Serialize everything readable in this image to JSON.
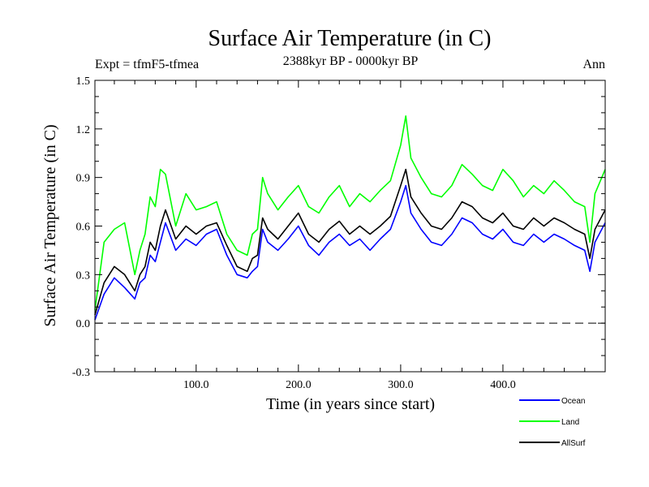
{
  "chart_data": {
    "type": "line",
    "title": "Surface Air Temperature (in C)",
    "subtitle": "2388kyr BP - 0000kyr BP",
    "left_label": "Expt = tfmF5-tfmea",
    "right_label": "Ann",
    "xlabel": "Time (in years since start)",
    "ylabel": "Surface Air Temperature (in C)",
    "xlim": [
      1,
      500
    ],
    "ylim": [
      -0.3,
      1.5
    ],
    "x_ticks": [
      100,
      200,
      300,
      400
    ],
    "x_tick_labels": [
      "100.0",
      "200.0",
      "300.0",
      "400.0"
    ],
    "y_ticks": [
      -0.3,
      0.0,
      0.3,
      0.6,
      0.9,
      1.2,
      1.5
    ],
    "y_tick_labels": [
      "-0.3",
      "0.0",
      "0.3",
      "0.6",
      "0.9",
      "1.2",
      "1.5"
    ],
    "reference_line": {
      "y": 0.0,
      "style": "dashed"
    },
    "x": [
      1,
      10,
      20,
      30,
      40,
      45,
      50,
      55,
      60,
      65,
      70,
      80,
      90,
      100,
      110,
      120,
      130,
      140,
      150,
      155,
      160,
      165,
      170,
      180,
      190,
      200,
      210,
      220,
      230,
      240,
      250,
      260,
      270,
      280,
      290,
      300,
      305,
      310,
      320,
      330,
      340,
      350,
      360,
      370,
      380,
      390,
      400,
      410,
      420,
      430,
      440,
      450,
      460,
      470,
      480,
      485,
      490,
      500
    ],
    "series": [
      {
        "name": "Ocean",
        "color": "#0000ff",
        "values": [
          0.02,
          0.18,
          0.28,
          0.22,
          0.15,
          0.25,
          0.28,
          0.42,
          0.38,
          0.5,
          0.62,
          0.45,
          0.52,
          0.48,
          0.55,
          0.58,
          0.42,
          0.3,
          0.28,
          0.32,
          0.35,
          0.58,
          0.5,
          0.45,
          0.52,
          0.6,
          0.48,
          0.42,
          0.5,
          0.55,
          0.48,
          0.52,
          0.45,
          0.52,
          0.58,
          0.75,
          0.85,
          0.68,
          0.58,
          0.5,
          0.48,
          0.55,
          0.65,
          0.62,
          0.55,
          0.52,
          0.58,
          0.5,
          0.48,
          0.55,
          0.5,
          0.55,
          0.52,
          0.48,
          0.45,
          0.32,
          0.5,
          0.62
        ]
      },
      {
        "name": "Land",
        "color": "#00ff00",
        "values": [
          0.08,
          0.5,
          0.58,
          0.62,
          0.3,
          0.45,
          0.55,
          0.78,
          0.72,
          0.95,
          0.92,
          0.6,
          0.8,
          0.7,
          0.72,
          0.75,
          0.55,
          0.45,
          0.42,
          0.55,
          0.58,
          0.9,
          0.8,
          0.7,
          0.78,
          0.85,
          0.72,
          0.68,
          0.78,
          0.85,
          0.72,
          0.8,
          0.75,
          0.82,
          0.88,
          1.1,
          1.28,
          1.02,
          0.9,
          0.8,
          0.78,
          0.85,
          0.98,
          0.92,
          0.85,
          0.82,
          0.95,
          0.88,
          0.78,
          0.85,
          0.8,
          0.88,
          0.82,
          0.75,
          0.72,
          0.5,
          0.8,
          0.95
        ]
      },
      {
        "name": "AllSurf",
        "color": "#000000",
        "values": [
          0.05,
          0.25,
          0.35,
          0.3,
          0.2,
          0.3,
          0.35,
          0.5,
          0.45,
          0.6,
          0.7,
          0.52,
          0.6,
          0.55,
          0.6,
          0.62,
          0.48,
          0.35,
          0.32,
          0.4,
          0.42,
          0.65,
          0.58,
          0.52,
          0.6,
          0.68,
          0.55,
          0.5,
          0.58,
          0.63,
          0.55,
          0.6,
          0.55,
          0.6,
          0.66,
          0.85,
          0.95,
          0.78,
          0.68,
          0.6,
          0.58,
          0.65,
          0.75,
          0.72,
          0.65,
          0.62,
          0.68,
          0.6,
          0.58,
          0.65,
          0.6,
          0.65,
          0.62,
          0.58,
          0.55,
          0.4,
          0.58,
          0.7
        ]
      }
    ],
    "legend": {
      "position": "bottom-right",
      "entries": [
        {
          "label": "Ocean",
          "color": "#0000ff"
        },
        {
          "label": "Land",
          "color": "#00ff00"
        },
        {
          "label": "AllSurf",
          "color": "#000000"
        }
      ]
    }
  }
}
